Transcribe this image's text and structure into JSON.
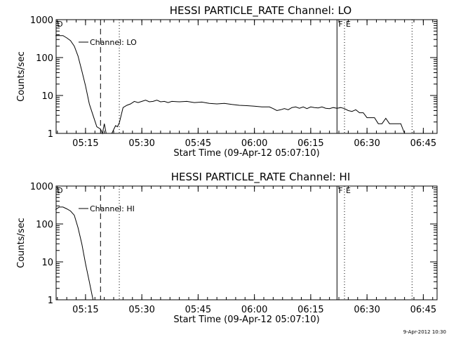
{
  "chart_data": [
    {
      "type": "line",
      "title": "HESSI PARTICLE_RATE Channel: LO",
      "xlabel": "Start Time (09-Apr-12 05:07:10)",
      "ylabel": "Counts/sec",
      "y_scale": "log",
      "ylim": [
        1,
        1000
      ],
      "xlim_minutes_from_start": [
        0,
        101.5
      ],
      "x_ticks": [
        "05:15",
        "05:30",
        "05:45",
        "06:00",
        "06:15",
        "06:30",
        "06:45"
      ],
      "y_ticks": [
        "1",
        "10",
        "100",
        "1000"
      ],
      "legend": "Channel: LO",
      "markers": [
        {
          "label": "D",
          "time": "05:07",
          "style": "none"
        },
        {
          "label": "",
          "time": "05:19",
          "style": "dashed"
        },
        {
          "label": "",
          "time": "05:24",
          "style": "dotted"
        },
        {
          "label": "F",
          "time": "06:22",
          "style": "solid"
        },
        {
          "label": "E",
          "time": "06:24",
          "style": "dotted"
        },
        {
          "label": "",
          "time": "06:42",
          "style": "dotted"
        }
      ],
      "series": [
        {
          "name": "Channel: LO",
          "x": [
            "05:07",
            "05:09",
            "05:10",
            "05:11",
            "05:12",
            "05:13",
            "05:14",
            "05:15",
            "05:16",
            "05:17",
            "05:18",
            "05:19",
            "05:19.5",
            "05:20",
            "05:20.5",
            "05:21",
            "05:22",
            "05:23",
            "05:23.5",
            "05:24",
            "05:24.5",
            "05:25",
            "05:26",
            "05:27",
            "05:28",
            "05:29",
            "05:30",
            "05:31",
            "05:32",
            "05:33",
            "05:34",
            "05:35",
            "05:36",
            "05:37",
            "05:38",
            "05:40",
            "05:42",
            "05:44",
            "05:46",
            "05:48",
            "05:50",
            "05:52",
            "05:54",
            "05:56",
            "05:58",
            "06:00",
            "06:02",
            "06:04",
            "06:05",
            "06:06",
            "06:07",
            "06:08",
            "06:09",
            "06:10",
            "06:11",
            "06:12",
            "06:13",
            "06:14",
            "06:15",
            "06:16",
            "06:17",
            "06:18",
            "06:19",
            "06:20",
            "06:21",
            "06:22",
            "06:23",
            "06:24",
            "06:25",
            "06:26",
            "06:27",
            "06:28",
            "06:29",
            "06:30",
            "06:31",
            "06:32",
            "06:33",
            "06:34",
            "06:35",
            "06:36",
            "06:37",
            "06:38",
            "06:39",
            "06:40"
          ],
          "values": [
            380,
            380,
            330,
            280,
            200,
            110,
            45,
            18,
            6,
            3,
            1.5,
            1.3,
            1,
            1.8,
            1,
            1,
            1,
            1.6,
            1.5,
            1.9,
            3,
            4.8,
            5.5,
            6,
            7,
            6.5,
            7,
            7.5,
            6.8,
            7,
            7.5,
            6.8,
            7,
            6.5,
            7,
            6.8,
            7,
            6.5,
            6.7,
            6.2,
            6,
            6.2,
            5.8,
            5.5,
            5.4,
            5.2,
            5,
            5,
            4.5,
            4,
            4.2,
            4.5,
            4.2,
            4.8,
            5,
            4.6,
            5,
            4.5,
            5,
            4.8,
            4.7,
            5,
            4.6,
            4.5,
            4.8,
            4.6,
            4.8,
            4.5,
            4,
            3.8,
            4.2,
            3.5,
            3.5,
            2.6,
            2.6,
            2.6,
            1.8,
            1.8,
            2.5,
            1.8,
            1.8,
            1.8,
            1.8,
            1
          ]
        }
      ]
    },
    {
      "type": "line",
      "title": "HESSI PARTICLE_RATE Channel: HI",
      "xlabel": "Start Time (09-Apr-12 05:07:10)",
      "ylabel": "Counts/sec",
      "y_scale": "log",
      "ylim": [
        1,
        1000
      ],
      "xlim_minutes_from_start": [
        0,
        101.5
      ],
      "x_ticks": [
        "05:15",
        "05:30",
        "05:45",
        "06:00",
        "06:15",
        "06:30",
        "06:45"
      ],
      "y_ticks": [
        "1",
        "10",
        "100",
        "1000"
      ],
      "legend": "Channel: HI",
      "markers": [
        {
          "label": "D",
          "time": "05:07",
          "style": "none"
        },
        {
          "label": "",
          "time": "05:19",
          "style": "dashed"
        },
        {
          "label": "",
          "time": "05:24",
          "style": "dotted"
        },
        {
          "label": "F",
          "time": "06:22",
          "style": "solid"
        },
        {
          "label": "E",
          "time": "06:24",
          "style": "dotted"
        },
        {
          "label": "",
          "time": "06:42",
          "style": "dotted"
        }
      ],
      "series": [
        {
          "name": "Channel: HI",
          "x": [
            "05:07",
            "05:08",
            "05:09",
            "05:10",
            "05:11",
            "05:12",
            "05:13",
            "05:14",
            "05:15",
            "05:16",
            "05:17"
          ],
          "values": [
            240,
            280,
            280,
            250,
            220,
            170,
            80,
            30,
            9,
            3,
            1
          ]
        }
      ]
    }
  ],
  "footer": {
    "date_stamp": "9-Apr-2012 10:30"
  }
}
